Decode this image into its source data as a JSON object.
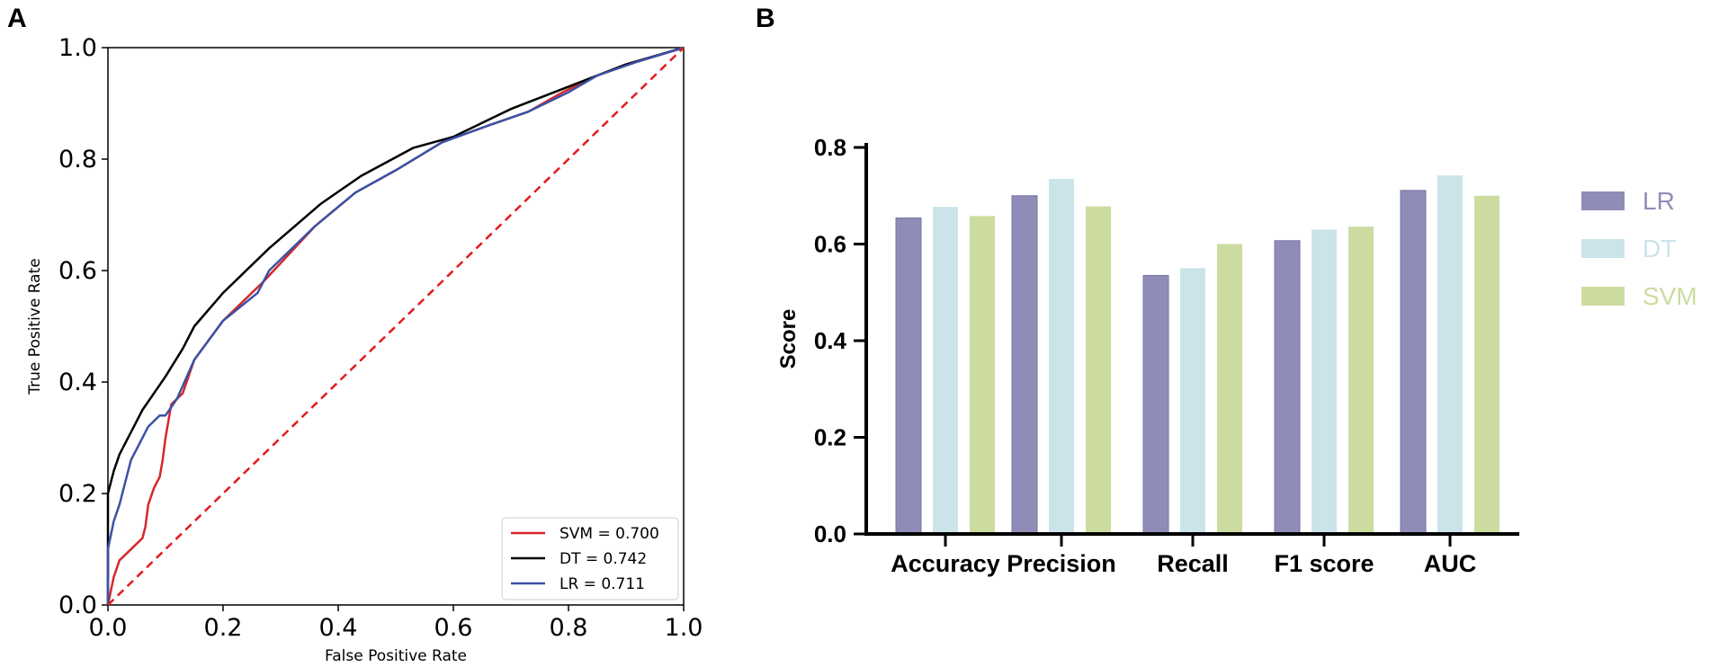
{
  "panels": {
    "a_label": "A",
    "b_label": "B"
  },
  "chart_data": [
    {
      "type": "line",
      "panel": "A",
      "title": "",
      "xlabel": "False Positive Rate",
      "ylabel": "True Positive Rate",
      "xlim": [
        0,
        1
      ],
      "ylim": [
        0,
        1
      ],
      "x_ticks": [
        "0.0",
        "0.2",
        "0.4",
        "0.6",
        "0.8",
        "1.0"
      ],
      "y_ticks": [
        "0.0",
        "0.2",
        "0.4",
        "0.6",
        "0.8",
        "1.0"
      ],
      "legend_position": "lower-right",
      "series": [
        {
          "name": "SVM = 0.700",
          "color": "#d62728",
          "x": [
            0,
            0.01,
            0.02,
            0.03,
            0.05,
            0.06,
            0.065,
            0.07,
            0.08,
            0.09,
            0.095,
            0.1,
            0.105,
            0.11,
            0.12,
            0.13,
            0.15,
            0.2,
            0.27,
            0.36,
            0.43,
            0.5,
            0.58,
            0.66,
            0.73,
            0.79,
            0.85,
            0.92,
            1.0
          ],
          "y": [
            0,
            0.05,
            0.08,
            0.09,
            0.11,
            0.12,
            0.14,
            0.18,
            0.21,
            0.23,
            0.26,
            0.3,
            0.33,
            0.36,
            0.37,
            0.38,
            0.44,
            0.51,
            0.58,
            0.68,
            0.74,
            0.78,
            0.83,
            0.86,
            0.885,
            0.92,
            0.95,
            0.975,
            1.0
          ]
        },
        {
          "name": "DT = 0.742",
          "color": "#000000",
          "x": [
            0,
            0.0,
            0.01,
            0.02,
            0.04,
            0.06,
            0.08,
            0.1,
            0.13,
            0.15,
            0.2,
            0.28,
            0.37,
            0.44,
            0.53,
            0.6,
            0.7,
            0.8,
            0.9,
            1.0
          ],
          "y": [
            0,
            0.2,
            0.24,
            0.27,
            0.31,
            0.35,
            0.38,
            0.41,
            0.46,
            0.5,
            0.56,
            0.64,
            0.72,
            0.77,
            0.82,
            0.84,
            0.89,
            0.93,
            0.97,
            1.0
          ]
        },
        {
          "name": "LR = 0.711",
          "color": "#3952a6",
          "x": [
            0,
            0.0,
            0.01,
            0.02,
            0.03,
            0.04,
            0.05,
            0.06,
            0.07,
            0.08,
            0.09,
            0.1,
            0.12,
            0.15,
            0.2,
            0.26,
            0.28,
            0.36,
            0.43,
            0.5,
            0.58,
            0.66,
            0.73,
            0.8,
            0.85,
            0.92,
            1.0
          ],
          "y": [
            0,
            0.1,
            0.15,
            0.18,
            0.22,
            0.26,
            0.28,
            0.3,
            0.32,
            0.33,
            0.34,
            0.34,
            0.37,
            0.44,
            0.51,
            0.56,
            0.6,
            0.68,
            0.74,
            0.78,
            0.83,
            0.86,
            0.885,
            0.92,
            0.95,
            0.975,
            1.0
          ]
        },
        {
          "name": "chance",
          "color": "#e41a1c",
          "style": "dashed",
          "in_legend": false,
          "x": [
            0,
            1
          ],
          "y": [
            0,
            1
          ]
        }
      ]
    },
    {
      "type": "bar",
      "panel": "B",
      "title": "",
      "xlabel": "",
      "ylabel": "Score",
      "ylim": [
        0,
        0.8
      ],
      "y_ticks": [
        "0.0",
        "0.2",
        "0.4",
        "0.6",
        "0.8"
      ],
      "legend_position": "right",
      "categories": [
        "Accuracy",
        "Precision",
        "Recall",
        "F1 score",
        "AUC"
      ],
      "series": [
        {
          "name": "LR",
          "color": "#8f8db8",
          "values": [
            0.654,
            0.7,
            0.535,
            0.607,
            0.711
          ]
        },
        {
          "name": "DT",
          "color": "#cbe4ea",
          "values": [
            0.677,
            0.735,
            0.55,
            0.63,
            0.742
          ]
        },
        {
          "name": "SVM",
          "color": "#ccdca0",
          "values": [
            0.658,
            0.678,
            0.6,
            0.636,
            0.7
          ]
        }
      ]
    }
  ]
}
